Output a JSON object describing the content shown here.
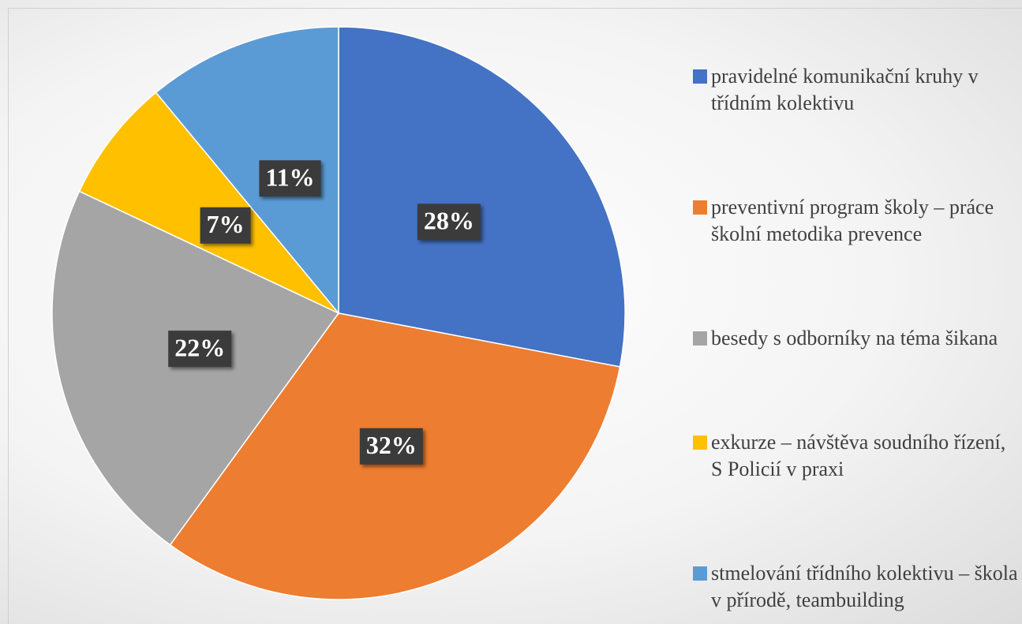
{
  "chart_data": {
    "type": "pie",
    "categories": [
      "pravidelné komunikační kruhy v třídním kolektivu",
      "preventivní program školy – práce školní metodika prevence",
      "besedy s odborníky na téma šikana",
      "exkurze – návštěva soudního řízení, S Policií v praxi",
      "stmelování třídního kolektivu – škola v přírodě, teambuilding"
    ],
    "values": [
      28,
      32,
      22,
      7,
      11
    ],
    "value_labels": [
      "28%",
      "32%",
      "22%",
      "7%",
      "11%"
    ],
    "colors": [
      "#4472c4",
      "#ed7d31",
      "#a5a5a5",
      "#ffc000",
      "#5b9bd5"
    ],
    "legend": "right"
  }
}
